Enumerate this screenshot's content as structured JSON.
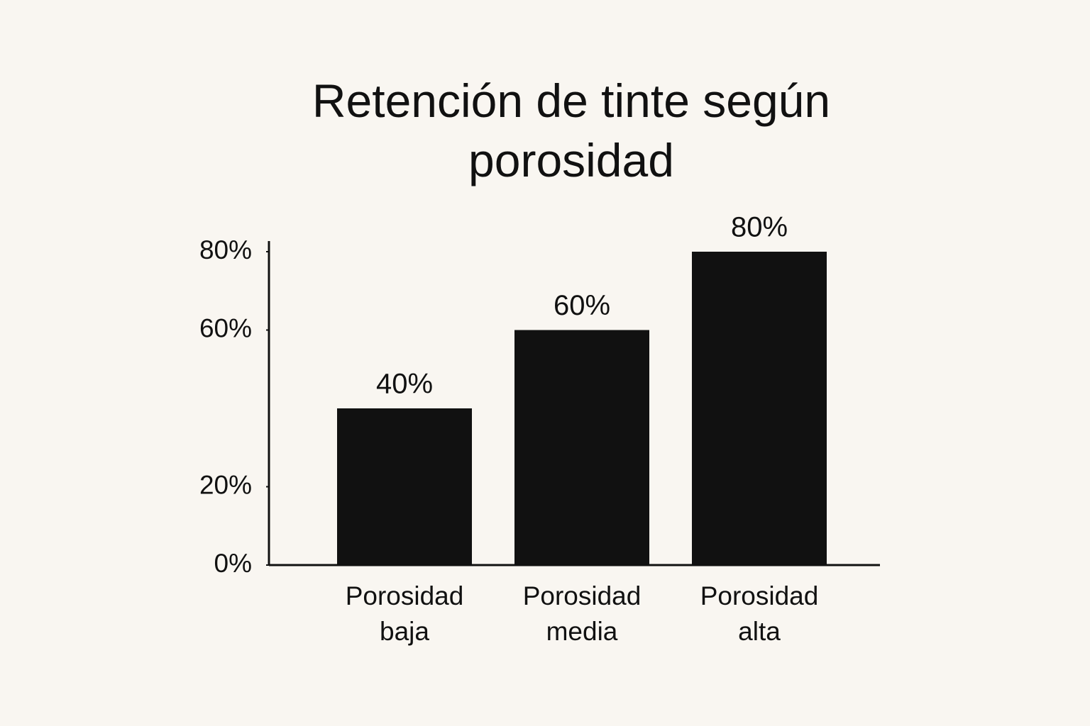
{
  "chart_data": {
    "type": "bar",
    "title": "Retención de tinte según porosidad",
    "categories": [
      "Porosidad baja",
      "Porosidad media",
      "Porosidad alta"
    ],
    "values": [
      40,
      60,
      80
    ],
    "value_labels": [
      "40%",
      "60%",
      "80%"
    ],
    "color": "#111111",
    "ylim": [
      0,
      80
    ],
    "yticks": [
      {
        "value": 0,
        "label": "0%"
      },
      {
        "value": 20,
        "label": "20%"
      },
      {
        "value": 60,
        "label": "60%"
      },
      {
        "value": 80,
        "label": "80%"
      }
    ],
    "grid": false
  }
}
